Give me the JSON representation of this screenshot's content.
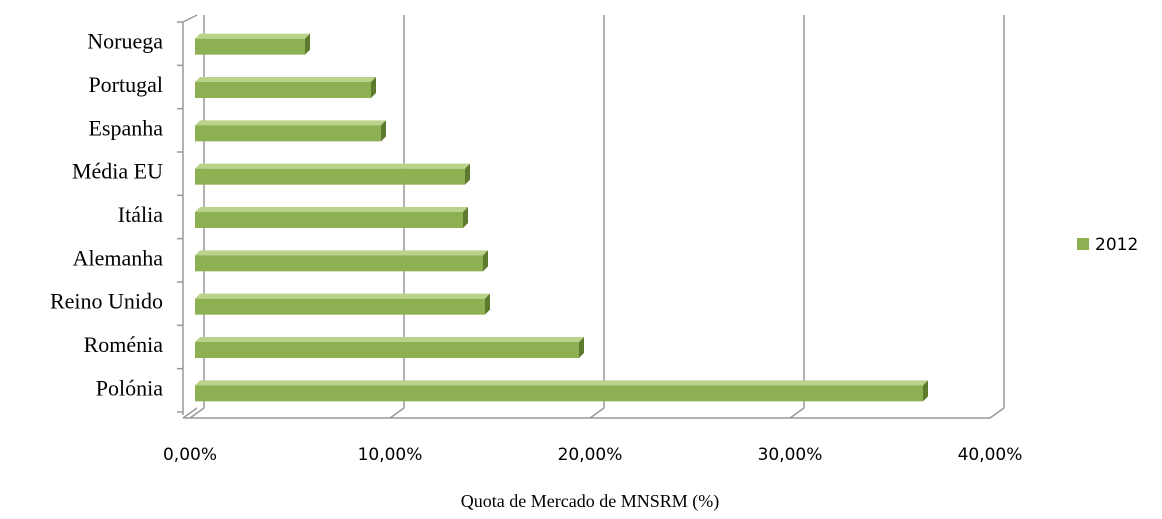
{
  "chart_data": {
    "type": "bar",
    "orientation": "horizontal",
    "xlabel": "Quota de Mercado de MNSRM (%)",
    "categories": [
      "Noruega",
      "Portugal",
      "Espanha",
      "Média EU",
      "Itália",
      "Alemanha",
      "Reino Unido",
      "Roménia",
      "Polónia"
    ],
    "series": [
      {
        "name": "2012",
        "color": "#8db052",
        "values": [
          5.5,
          8.8,
          9.3,
          13.5,
          13.4,
          14.4,
          14.5,
          19.2,
          36.4
        ]
      }
    ],
    "xlim": [
      0,
      40
    ],
    "xticks": [
      {
        "value": 0,
        "label": "0,00%"
      },
      {
        "value": 10,
        "label": "10,00%"
      },
      {
        "value": 20,
        "label": "20,00%"
      },
      {
        "value": 30,
        "label": "30,00%"
      },
      {
        "value": 40,
        "label": "40,00%"
      }
    ],
    "grid": true,
    "legend": "right"
  }
}
